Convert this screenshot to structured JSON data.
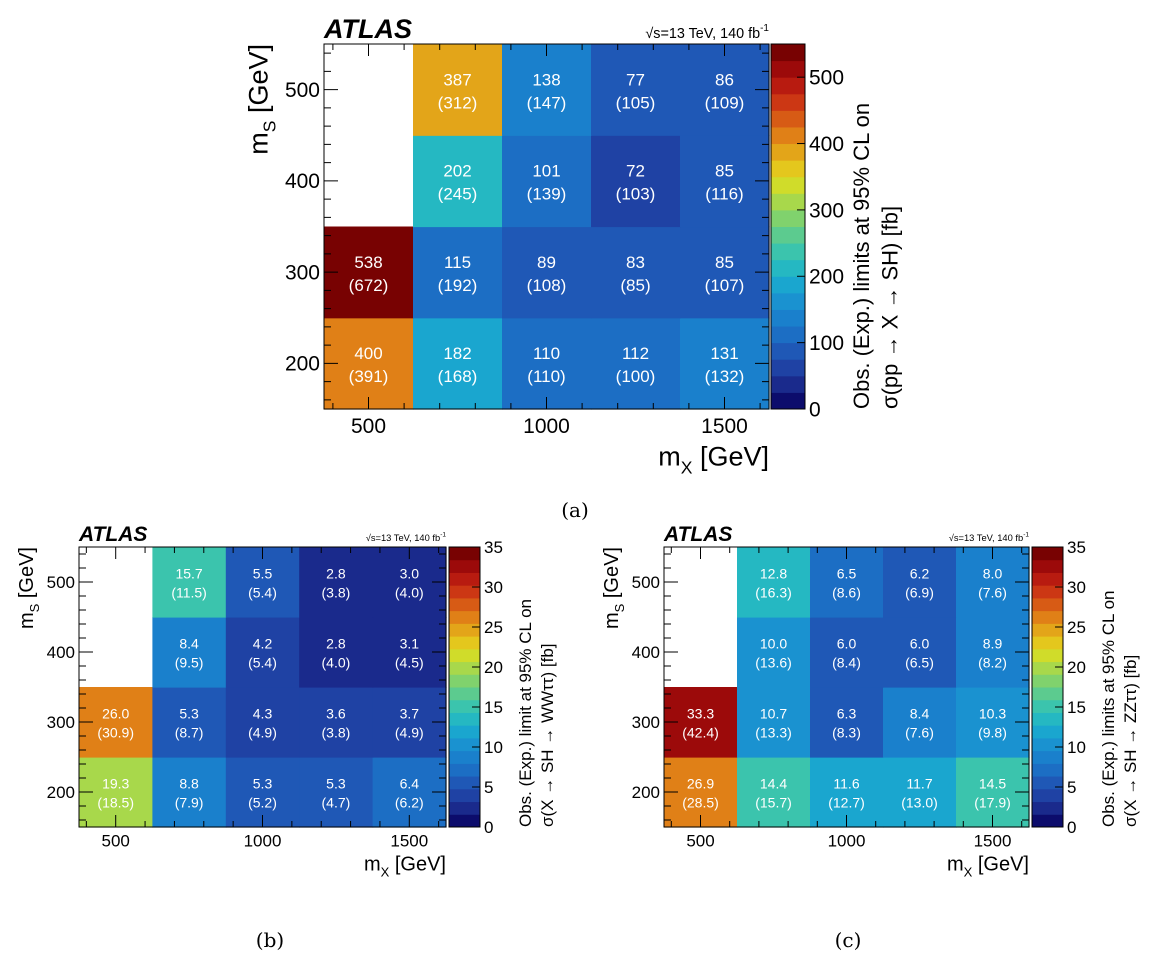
{
  "chart_data": [
    {
      "type": "heatmap",
      "experiment": "ATLAS",
      "energy_label": "√s=13 TeV, 140 fb",
      "energy_label_sup": "-1",
      "xlabel": "m",
      "xlabel_sub": "X",
      "xlabel_unit": "[GeV]",
      "ylabel": "m",
      "ylabel_sub": "S",
      "ylabel_unit": "[GeV]",
      "zlabel_line1": "Obs. (Exp.) limits at 95% CL on",
      "zlabel_line2": "σ(pp → X → SH) [fb]",
      "x_centers": [
        500,
        750,
        1000,
        1250,
        1500
      ],
      "y_centers": [
        200,
        300,
        400,
        500
      ],
      "x_ticks": [
        "500",
        "1000",
        "1500"
      ],
      "y_ticks": [
        "200",
        "300",
        "400",
        "500"
      ],
      "z_range": [
        0,
        550
      ],
      "z_ticks": [
        "0",
        "100",
        "200",
        "300",
        "400",
        "500"
      ],
      "caption": "(a)",
      "cells": [
        {
          "x": 500,
          "y": 200,
          "obs": "400",
          "exp": "(391)"
        },
        {
          "x": 750,
          "y": 200,
          "obs": "182",
          "exp": "(168)"
        },
        {
          "x": 1000,
          "y": 200,
          "obs": "110",
          "exp": "(110)"
        },
        {
          "x": 1250,
          "y": 200,
          "obs": "112",
          "exp": "(100)"
        },
        {
          "x": 1500,
          "y": 200,
          "obs": "131",
          "exp": "(132)"
        },
        {
          "x": 500,
          "y": 300,
          "obs": "538",
          "exp": "(672)"
        },
        {
          "x": 750,
          "y": 300,
          "obs": "115",
          "exp": "(192)"
        },
        {
          "x": 1000,
          "y": 300,
          "obs": "89",
          "exp": "(108)"
        },
        {
          "x": 1250,
          "y": 300,
          "obs": "83",
          "exp": "(85)"
        },
        {
          "x": 1500,
          "y": 300,
          "obs": "85",
          "exp": "(107)"
        },
        {
          "x": 750,
          "y": 400,
          "obs": "202",
          "exp": "(245)"
        },
        {
          "x": 1000,
          "y": 400,
          "obs": "101",
          "exp": "(139)"
        },
        {
          "x": 1250,
          "y": 400,
          "obs": "72",
          "exp": "(103)"
        },
        {
          "x": 1500,
          "y": 400,
          "obs": "85",
          "exp": "(116)"
        },
        {
          "x": 750,
          "y": 500,
          "obs": "387",
          "exp": "(312)"
        },
        {
          "x": 1000,
          "y": 500,
          "obs": "138",
          "exp": "(147)"
        },
        {
          "x": 1250,
          "y": 500,
          "obs": "77",
          "exp": "(105)"
        },
        {
          "x": 1500,
          "y": 500,
          "obs": "86",
          "exp": "(109)"
        }
      ]
    },
    {
      "type": "heatmap",
      "experiment": "ATLAS",
      "energy_label": "√s=13 TeV, 140 fb",
      "energy_label_sup": "-1",
      "xlabel": "m",
      "xlabel_sub": "X",
      "xlabel_unit": "[GeV]",
      "ylabel": "m",
      "ylabel_sub": "S",
      "ylabel_unit": "[GeV]",
      "zlabel_line1": "Obs. (Exp.) limit at 95% CL on",
      "zlabel_line2": "σ(X → SH → WWττ) [fb]",
      "x_centers": [
        500,
        750,
        1000,
        1250,
        1500
      ],
      "y_centers": [
        200,
        300,
        400,
        500
      ],
      "x_ticks": [
        "500",
        "1000",
        "1500"
      ],
      "y_ticks": [
        "200",
        "300",
        "400",
        "500"
      ],
      "z_range": [
        0,
        35
      ],
      "z_ticks": [
        "0",
        "5",
        "10",
        "15",
        "20",
        "25",
        "30",
        "35"
      ],
      "caption": "(b)",
      "cells": [
        {
          "x": 500,
          "y": 200,
          "obs": "19.3",
          "exp": "(18.5)"
        },
        {
          "x": 750,
          "y": 200,
          "obs": "8.8",
          "exp": "(7.9)"
        },
        {
          "x": 1000,
          "y": 200,
          "obs": "5.3",
          "exp": "(5.2)"
        },
        {
          "x": 1250,
          "y": 200,
          "obs": "5.3",
          "exp": "(4.7)"
        },
        {
          "x": 1500,
          "y": 200,
          "obs": "6.4",
          "exp": "(6.2)"
        },
        {
          "x": 500,
          "y": 300,
          "obs": "26.0",
          "exp": "(30.9)"
        },
        {
          "x": 750,
          "y": 300,
          "obs": "5.3",
          "exp": "(8.7)"
        },
        {
          "x": 1000,
          "y": 300,
          "obs": "4.3",
          "exp": "(4.9)"
        },
        {
          "x": 1250,
          "y": 300,
          "obs": "3.6",
          "exp": "(3.8)"
        },
        {
          "x": 1500,
          "y": 300,
          "obs": "3.7",
          "exp": "(4.9)"
        },
        {
          "x": 750,
          "y": 400,
          "obs": "8.4",
          "exp": "(9.5)"
        },
        {
          "x": 1000,
          "y": 400,
          "obs": "4.2",
          "exp": "(5.4)"
        },
        {
          "x": 1250,
          "y": 400,
          "obs": "2.8",
          "exp": "(4.0)"
        },
        {
          "x": 1500,
          "y": 400,
          "obs": "3.1",
          "exp": "(4.5)"
        },
        {
          "x": 750,
          "y": 500,
          "obs": "15.7",
          "exp": "(11.5)"
        },
        {
          "x": 1000,
          "y": 500,
          "obs": "5.5",
          "exp": "(5.4)"
        },
        {
          "x": 1250,
          "y": 500,
          "obs": "2.8",
          "exp": "(3.8)"
        },
        {
          "x": 1500,
          "y": 500,
          "obs": "3.0",
          "exp": "(4.0)"
        }
      ]
    },
    {
      "type": "heatmap",
      "experiment": "ATLAS",
      "energy_label": "√s=13 TeV, 140 fb",
      "energy_label_sup": "-1",
      "xlabel": "m",
      "xlabel_sub": "X",
      "xlabel_unit": "[GeV]",
      "ylabel": "m",
      "ylabel_sub": "S",
      "ylabel_unit": "[GeV]",
      "zlabel_line1": "Obs. (Exp.) limits at 95% CL on",
      "zlabel_line2": "σ(X → SH → ZZττ) [fb]",
      "x_centers": [
        500,
        750,
        1000,
        1250,
        1500
      ],
      "y_centers": [
        200,
        300,
        400,
        500
      ],
      "x_ticks": [
        "500",
        "1000",
        "1500"
      ],
      "y_ticks": [
        "200",
        "300",
        "400",
        "500"
      ],
      "z_range": [
        0,
        35
      ],
      "z_ticks": [
        "0",
        "5",
        "10",
        "15",
        "20",
        "25",
        "30",
        "35"
      ],
      "caption": "(c)",
      "cells": [
        {
          "x": 500,
          "y": 200,
          "obs": "26.9",
          "exp": "(28.5)"
        },
        {
          "x": 750,
          "y": 200,
          "obs": "14.4",
          "exp": "(15.7)"
        },
        {
          "x": 1000,
          "y": 200,
          "obs": "11.6",
          "exp": "(12.7)"
        },
        {
          "x": 1250,
          "y": 200,
          "obs": "11.7",
          "exp": "(13.0)"
        },
        {
          "x": 1500,
          "y": 200,
          "obs": "14.5",
          "exp": "(17.9)"
        },
        {
          "x": 500,
          "y": 300,
          "obs": "33.3",
          "exp": "(42.4)"
        },
        {
          "x": 750,
          "y": 300,
          "obs": "10.7",
          "exp": "(13.3)"
        },
        {
          "x": 1000,
          "y": 300,
          "obs": "6.3",
          "exp": "(8.3)"
        },
        {
          "x": 1250,
          "y": 300,
          "obs": "8.4",
          "exp": "(7.6)"
        },
        {
          "x": 1500,
          "y": 300,
          "obs": "10.3",
          "exp": "(9.8)"
        },
        {
          "x": 750,
          "y": 400,
          "obs": "10.0",
          "exp": "(13.6)"
        },
        {
          "x": 1000,
          "y": 400,
          "obs": "6.0",
          "exp": "(8.4)"
        },
        {
          "x": 1250,
          "y": 400,
          "obs": "6.0",
          "exp": "(6.5)"
        },
        {
          "x": 1500,
          "y": 400,
          "obs": "8.9",
          "exp": "(8.2)"
        },
        {
          "x": 750,
          "y": 500,
          "obs": "12.8",
          "exp": "(16.3)"
        },
        {
          "x": 1000,
          "y": 500,
          "obs": "6.5",
          "exp": "(8.6)"
        },
        {
          "x": 1250,
          "y": 500,
          "obs": "6.2",
          "exp": "(6.9)"
        },
        {
          "x": 1500,
          "y": 500,
          "obs": "8.0",
          "exp": "(7.6)"
        }
      ]
    }
  ],
  "palette": [
    "#0c0c6c",
    "#1a2a8c",
    "#1f42a4",
    "#1f58b6",
    "#1c6ec4",
    "#1a80cc",
    "#1a92d0",
    "#1aa6cf",
    "#25b8c2",
    "#3bc4ad",
    "#5ccb8f",
    "#80d26d",
    "#a8d84b",
    "#d0dc2a",
    "#e4c71d",
    "#e3a519",
    "#e08017",
    "#d75b15",
    "#cc3714",
    "#b81b10",
    "#9c0a0a",
    "#780202"
  ]
}
